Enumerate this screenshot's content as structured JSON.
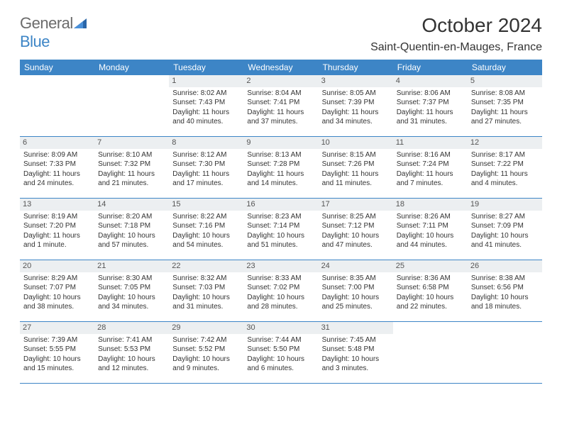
{
  "brand": {
    "general": "General",
    "blue": "Blue"
  },
  "title": "October 2024",
  "location": "Saint-Quentin-en-Mauges, France",
  "colors": {
    "header_bg": "#3d85c6",
    "daynum_bg": "#eceff1",
    "border": "#3d85c6",
    "text": "#333333",
    "logo_gray": "#6b6b6b",
    "logo_blue": "#3d85c6"
  },
  "weekdays": [
    "Sunday",
    "Monday",
    "Tuesday",
    "Wednesday",
    "Thursday",
    "Friday",
    "Saturday"
  ],
  "weeks": [
    [
      null,
      null,
      {
        "n": "1",
        "sr": "Sunrise: 8:02 AM",
        "ss": "Sunset: 7:43 PM",
        "dl": "Daylight: 11 hours and 40 minutes."
      },
      {
        "n": "2",
        "sr": "Sunrise: 8:04 AM",
        "ss": "Sunset: 7:41 PM",
        "dl": "Daylight: 11 hours and 37 minutes."
      },
      {
        "n": "3",
        "sr": "Sunrise: 8:05 AM",
        "ss": "Sunset: 7:39 PM",
        "dl": "Daylight: 11 hours and 34 minutes."
      },
      {
        "n": "4",
        "sr": "Sunrise: 8:06 AM",
        "ss": "Sunset: 7:37 PM",
        "dl": "Daylight: 11 hours and 31 minutes."
      },
      {
        "n": "5",
        "sr": "Sunrise: 8:08 AM",
        "ss": "Sunset: 7:35 PM",
        "dl": "Daylight: 11 hours and 27 minutes."
      }
    ],
    [
      {
        "n": "6",
        "sr": "Sunrise: 8:09 AM",
        "ss": "Sunset: 7:33 PM",
        "dl": "Daylight: 11 hours and 24 minutes."
      },
      {
        "n": "7",
        "sr": "Sunrise: 8:10 AM",
        "ss": "Sunset: 7:32 PM",
        "dl": "Daylight: 11 hours and 21 minutes."
      },
      {
        "n": "8",
        "sr": "Sunrise: 8:12 AM",
        "ss": "Sunset: 7:30 PM",
        "dl": "Daylight: 11 hours and 17 minutes."
      },
      {
        "n": "9",
        "sr": "Sunrise: 8:13 AM",
        "ss": "Sunset: 7:28 PM",
        "dl": "Daylight: 11 hours and 14 minutes."
      },
      {
        "n": "10",
        "sr": "Sunrise: 8:15 AM",
        "ss": "Sunset: 7:26 PM",
        "dl": "Daylight: 11 hours and 11 minutes."
      },
      {
        "n": "11",
        "sr": "Sunrise: 8:16 AM",
        "ss": "Sunset: 7:24 PM",
        "dl": "Daylight: 11 hours and 7 minutes."
      },
      {
        "n": "12",
        "sr": "Sunrise: 8:17 AM",
        "ss": "Sunset: 7:22 PM",
        "dl": "Daylight: 11 hours and 4 minutes."
      }
    ],
    [
      {
        "n": "13",
        "sr": "Sunrise: 8:19 AM",
        "ss": "Sunset: 7:20 PM",
        "dl": "Daylight: 11 hours and 1 minute."
      },
      {
        "n": "14",
        "sr": "Sunrise: 8:20 AM",
        "ss": "Sunset: 7:18 PM",
        "dl": "Daylight: 10 hours and 57 minutes."
      },
      {
        "n": "15",
        "sr": "Sunrise: 8:22 AM",
        "ss": "Sunset: 7:16 PM",
        "dl": "Daylight: 10 hours and 54 minutes."
      },
      {
        "n": "16",
        "sr": "Sunrise: 8:23 AM",
        "ss": "Sunset: 7:14 PM",
        "dl": "Daylight: 10 hours and 51 minutes."
      },
      {
        "n": "17",
        "sr": "Sunrise: 8:25 AM",
        "ss": "Sunset: 7:12 PM",
        "dl": "Daylight: 10 hours and 47 minutes."
      },
      {
        "n": "18",
        "sr": "Sunrise: 8:26 AM",
        "ss": "Sunset: 7:11 PM",
        "dl": "Daylight: 10 hours and 44 minutes."
      },
      {
        "n": "19",
        "sr": "Sunrise: 8:27 AM",
        "ss": "Sunset: 7:09 PM",
        "dl": "Daylight: 10 hours and 41 minutes."
      }
    ],
    [
      {
        "n": "20",
        "sr": "Sunrise: 8:29 AM",
        "ss": "Sunset: 7:07 PM",
        "dl": "Daylight: 10 hours and 38 minutes."
      },
      {
        "n": "21",
        "sr": "Sunrise: 8:30 AM",
        "ss": "Sunset: 7:05 PM",
        "dl": "Daylight: 10 hours and 34 minutes."
      },
      {
        "n": "22",
        "sr": "Sunrise: 8:32 AM",
        "ss": "Sunset: 7:03 PM",
        "dl": "Daylight: 10 hours and 31 minutes."
      },
      {
        "n": "23",
        "sr": "Sunrise: 8:33 AM",
        "ss": "Sunset: 7:02 PM",
        "dl": "Daylight: 10 hours and 28 minutes."
      },
      {
        "n": "24",
        "sr": "Sunrise: 8:35 AM",
        "ss": "Sunset: 7:00 PM",
        "dl": "Daylight: 10 hours and 25 minutes."
      },
      {
        "n": "25",
        "sr": "Sunrise: 8:36 AM",
        "ss": "Sunset: 6:58 PM",
        "dl": "Daylight: 10 hours and 22 minutes."
      },
      {
        "n": "26",
        "sr": "Sunrise: 8:38 AM",
        "ss": "Sunset: 6:56 PM",
        "dl": "Daylight: 10 hours and 18 minutes."
      }
    ],
    [
      {
        "n": "27",
        "sr": "Sunrise: 7:39 AM",
        "ss": "Sunset: 5:55 PM",
        "dl": "Daylight: 10 hours and 15 minutes."
      },
      {
        "n": "28",
        "sr": "Sunrise: 7:41 AM",
        "ss": "Sunset: 5:53 PM",
        "dl": "Daylight: 10 hours and 12 minutes."
      },
      {
        "n": "29",
        "sr": "Sunrise: 7:42 AM",
        "ss": "Sunset: 5:52 PM",
        "dl": "Daylight: 10 hours and 9 minutes."
      },
      {
        "n": "30",
        "sr": "Sunrise: 7:44 AM",
        "ss": "Sunset: 5:50 PM",
        "dl": "Daylight: 10 hours and 6 minutes."
      },
      {
        "n": "31",
        "sr": "Sunrise: 7:45 AM",
        "ss": "Sunset: 5:48 PM",
        "dl": "Daylight: 10 hours and 3 minutes."
      },
      null,
      null
    ]
  ]
}
